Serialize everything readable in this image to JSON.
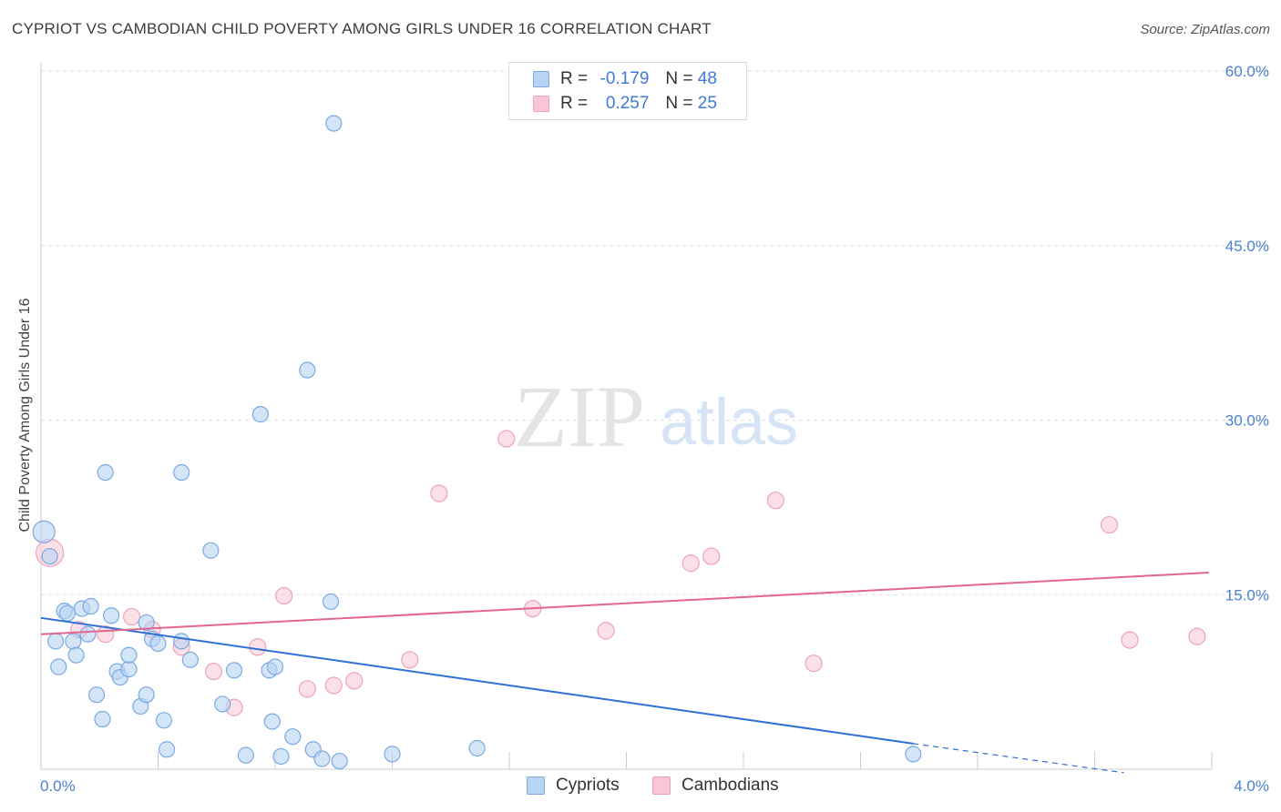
{
  "title": "CYPRIOT VS CAMBODIAN CHILD POVERTY AMONG GIRLS UNDER 16 CORRELATION CHART",
  "source": "Source: ZipAtlas.com",
  "watermark": {
    "zip": "ZIP",
    "atlas": "atlas"
  },
  "legend": {
    "cypriots": {
      "r_label": "R =",
      "r_value": "-0.179",
      "n_label": "N =",
      "n_value": "48"
    },
    "cambodians": {
      "r_label": "R =",
      "r_value": "0.257",
      "n_label": "N =",
      "n_value": "25"
    }
  },
  "colors": {
    "cypriot_fill": "#b8d3f3",
    "cypriot_stroke": "#7aaae3",
    "cypriot_line": "#2f6fd6",
    "cambodian_fill": "#f8c6d5",
    "cambodian_stroke": "#eea2b9",
    "cambodian_line": "#e2668f",
    "tick": "#4a7fd0",
    "grid": "#dddddd"
  },
  "chart_data": {
    "type": "scatter",
    "title": "CYPRIOT VS CAMBODIAN CHILD POVERTY AMONG GIRLS UNDER 16 CORRELATION CHART",
    "xlabel": "",
    "ylabel": "Child Poverty Among Girls Under 16",
    "xlim": [
      0.0,
      4.0
    ],
    "ylim": [
      0.0,
      60.0
    ],
    "x_tick_labels": [
      "0.0%",
      "4.0%"
    ],
    "y_ticks": [
      15.0,
      30.0,
      45.0,
      60.0
    ],
    "y_tick_labels": [
      "15.0%",
      "30.0%",
      "45.0%",
      "60.0%"
    ],
    "series": [
      {
        "name": "Cypriots",
        "points": [
          [
            0.01,
            20.4
          ],
          [
            0.03,
            18.3
          ],
          [
            0.05,
            11.0
          ],
          [
            0.06,
            8.8
          ],
          [
            0.08,
            13.6
          ],
          [
            0.09,
            13.4
          ],
          [
            0.11,
            11.0
          ],
          [
            0.12,
            9.8
          ],
          [
            0.14,
            13.8
          ],
          [
            0.16,
            11.6
          ],
          [
            0.17,
            14.0
          ],
          [
            0.19,
            6.4
          ],
          [
            0.21,
            4.3
          ],
          [
            0.22,
            25.5
          ],
          [
            0.24,
            13.2
          ],
          [
            0.26,
            8.4
          ],
          [
            0.27,
            7.9
          ],
          [
            0.3,
            8.6
          ],
          [
            0.3,
            9.8
          ],
          [
            0.34,
            5.4
          ],
          [
            0.36,
            6.4
          ],
          [
            0.36,
            12.6
          ],
          [
            0.38,
            11.2
          ],
          [
            0.4,
            10.8
          ],
          [
            0.42,
            4.2
          ],
          [
            0.43,
            1.7
          ],
          [
            0.48,
            25.5
          ],
          [
            0.48,
            11.0
          ],
          [
            0.51,
            9.4
          ],
          [
            0.58,
            18.8
          ],
          [
            0.62,
            5.6
          ],
          [
            0.66,
            8.5
          ],
          [
            0.7,
            1.2
          ],
          [
            0.75,
            30.5
          ],
          [
            0.78,
            8.5
          ],
          [
            0.8,
            8.8
          ],
          [
            0.79,
            4.1
          ],
          [
            0.82,
            1.1
          ],
          [
            0.86,
            2.8
          ],
          [
            0.91,
            34.3
          ],
          [
            0.93,
            1.7
          ],
          [
            0.96,
            0.9
          ],
          [
            0.99,
            14.4
          ],
          [
            1.0,
            55.5
          ],
          [
            1.02,
            0.7
          ],
          [
            1.2,
            1.3
          ],
          [
            1.49,
            1.8
          ],
          [
            2.98,
            1.3
          ]
        ]
      },
      {
        "name": "Cambodians",
        "points": [
          [
            0.03,
            18.6
          ],
          [
            0.13,
            12.0
          ],
          [
            0.22,
            11.6
          ],
          [
            0.31,
            13.1
          ],
          [
            0.38,
            12.0
          ],
          [
            0.48,
            10.5
          ],
          [
            0.59,
            8.4
          ],
          [
            0.66,
            5.3
          ],
          [
            0.74,
            10.5
          ],
          [
            0.83,
            14.9
          ],
          [
            0.91,
            6.9
          ],
          [
            1.0,
            7.2
          ],
          [
            1.07,
            7.6
          ],
          [
            1.26,
            9.4
          ],
          [
            1.36,
            23.7
          ],
          [
            1.59,
            28.4
          ],
          [
            1.68,
            13.8
          ],
          [
            1.93,
            11.9
          ],
          [
            2.22,
            17.7
          ],
          [
            2.29,
            18.3
          ],
          [
            2.51,
            23.1
          ],
          [
            2.64,
            9.1
          ],
          [
            3.65,
            21.0
          ],
          [
            3.72,
            11.1
          ],
          [
            3.95,
            11.4
          ]
        ]
      }
    ],
    "trendlines": [
      {
        "series": "Cypriots",
        "x0": 0.0,
        "y0": 13.0,
        "x1": 2.98,
        "y1": 2.2,
        "dashed_to_x": 3.7,
        "dashed_to_y": -0.3
      },
      {
        "series": "Cambodians",
        "x0": 0.0,
        "y0": 11.6,
        "x1": 3.99,
        "y1": 16.9
      }
    ]
  },
  "bottom_legend": {
    "cypriots": "Cypriots",
    "cambodians": "Cambodians"
  }
}
